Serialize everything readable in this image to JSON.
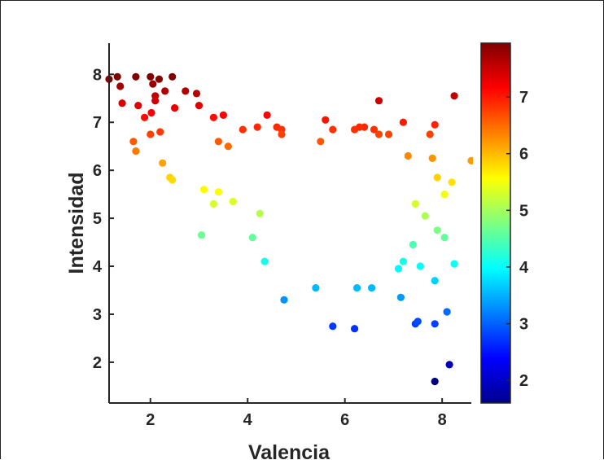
{
  "chart_data": {
    "type": "scatter",
    "xlabel": "Valencia",
    "ylabel": "Intensidad",
    "xlim": [
      1.15,
      8.6
    ],
    "ylim": [
      1.15,
      8.65
    ],
    "xticks": [
      "2",
      "4",
      "6",
      "8"
    ],
    "yticks": [
      "2",
      "3",
      "4",
      "5",
      "6",
      "7",
      "8"
    ],
    "grid": false,
    "colormap": "jet",
    "color_by": "y",
    "colorbar": {
      "range": [
        1.6,
        7.95
      ],
      "ticks": [
        "2",
        "3",
        "4",
        "5",
        "6",
        "7"
      ]
    },
    "points": [
      [
        1.15,
        7.9
      ],
      [
        1.32,
        7.95
      ],
      [
        1.38,
        7.75
      ],
      [
        1.42,
        7.4
      ],
      [
        1.7,
        7.95
      ],
      [
        1.75,
        7.35
      ],
      [
        1.88,
        7.1
      ],
      [
        2.0,
        7.95
      ],
      [
        2.05,
        7.8
      ],
      [
        2.1,
        7.55
      ],
      [
        2.1,
        7.45
      ],
      [
        2.18,
        7.9
      ],
      [
        2.3,
        7.65
      ],
      [
        2.45,
        7.95
      ],
      [
        2.5,
        7.3
      ],
      [
        2.72,
        7.65
      ],
      [
        2.95,
        7.6
      ],
      [
        3.0,
        7.35
      ],
      [
        1.65,
        6.6
      ],
      [
        1.7,
        6.4
      ],
      [
        2.0,
        6.75
      ],
      [
        2.02,
        7.2
      ],
      [
        2.2,
        6.8
      ],
      [
        2.25,
        6.15
      ],
      [
        2.4,
        5.85
      ],
      [
        2.45,
        5.8
      ],
      [
        3.3,
        7.1
      ],
      [
        3.5,
        7.15
      ],
      [
        4.4,
        7.15
      ],
      [
        3.4,
        6.6
      ],
      [
        3.6,
        6.5
      ],
      [
        3.9,
        6.85
      ],
      [
        4.2,
        6.9
      ],
      [
        4.6,
        6.9
      ],
      [
        4.7,
        6.85
      ],
      [
        4.7,
        6.75
      ],
      [
        5.5,
        6.6
      ],
      [
        5.6,
        7.05
      ],
      [
        5.75,
        6.85
      ],
      [
        6.2,
        6.85
      ],
      [
        6.3,
        6.9
      ],
      [
        6.4,
        6.9
      ],
      [
        6.6,
        6.85
      ],
      [
        6.7,
        7.45
      ],
      [
        6.7,
        6.75
      ],
      [
        6.9,
        6.75
      ],
      [
        7.2,
        7.0
      ],
      [
        7.75,
        6.75
      ],
      [
        7.85,
        6.95
      ],
      [
        8.25,
        7.55
      ],
      [
        7.3,
        6.3
      ],
      [
        7.8,
        6.25
      ],
      [
        8.2,
        5.75
      ],
      [
        8.6,
        6.2
      ],
      [
        3.05,
        4.65
      ],
      [
        3.1,
        5.6
      ],
      [
        3.3,
        5.3
      ],
      [
        3.4,
        5.55
      ],
      [
        3.7,
        5.35
      ],
      [
        4.25,
        5.1
      ],
      [
        4.1,
        4.6
      ],
      [
        4.35,
        4.1
      ],
      [
        4.75,
        3.3
      ],
      [
        5.4,
        3.55
      ],
      [
        5.75,
        2.75
      ],
      [
        6.2,
        2.7
      ],
      [
        6.25,
        3.55
      ],
      [
        6.55,
        3.55
      ],
      [
        7.15,
        3.35
      ],
      [
        7.45,
        2.8
      ],
      [
        7.5,
        2.85
      ],
      [
        7.85,
        2.8
      ],
      [
        8.1,
        3.05
      ],
      [
        7.85,
        3.7
      ],
      [
        8.25,
        4.05
      ],
      [
        7.55,
        4.0
      ],
      [
        7.2,
        4.1
      ],
      [
        7.85,
        1.6
      ],
      [
        8.15,
        1.95
      ],
      [
        8.05,
        4.6
      ],
      [
        7.9,
        4.75
      ],
      [
        8.05,
        5.5
      ],
      [
        7.65,
        5.05
      ],
      [
        7.4,
        4.45
      ],
      [
        7.9,
        5.85
      ],
      [
        7.45,
        5.3
      ],
      [
        7.1,
        3.95
      ]
    ]
  }
}
